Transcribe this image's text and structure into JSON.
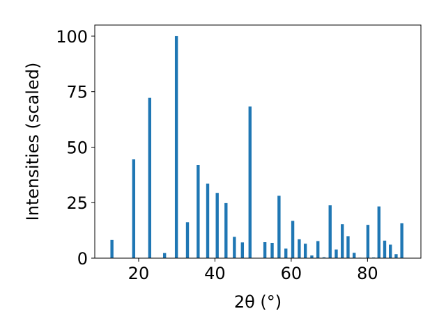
{
  "chart_data": {
    "type": "bar",
    "xlabel": "2θ (°)",
    "ylabel": "Intensities (scaled)",
    "xlim": [
      8.5,
      94.0
    ],
    "ylim": [
      0,
      105
    ],
    "xticks": [
      20,
      40,
      60,
      80
    ],
    "yticks": [
      0,
      25,
      50,
      75,
      100
    ],
    "grid": false,
    "bar_color": "#1f77b4",
    "bar_width": 0.8,
    "x": [
      13.0,
      18.7,
      22.9,
      26.8,
      29.9,
      32.8,
      35.6,
      38.1,
      40.6,
      42.9,
      45.1,
      47.2,
      49.2,
      53.1,
      55.0,
      56.8,
      58.6,
      60.4,
      62.1,
      63.7,
      65.4,
      67.0,
      68.6,
      70.2,
      71.8,
      73.4,
      74.9,
      76.5,
      78.0,
      80.1,
      81.6,
      83.0,
      84.5,
      86.0,
      87.5,
      89.0
    ],
    "values": [
      8.2,
      44.5,
      72.2,
      2.3,
      100.0,
      16.2,
      42.0,
      33.6,
      29.4,
      24.8,
      9.6,
      7.1,
      68.3,
      7.2,
      6.9,
      28.1,
      4.3,
      16.8,
      8.5,
      6.5,
      1.2,
      7.7,
      0.4,
      23.8,
      3.9,
      15.3,
      9.9,
      2.4,
      0.2,
      15.0,
      0.3,
      23.3,
      7.9,
      6.1,
      1.8,
      15.7
    ]
  }
}
